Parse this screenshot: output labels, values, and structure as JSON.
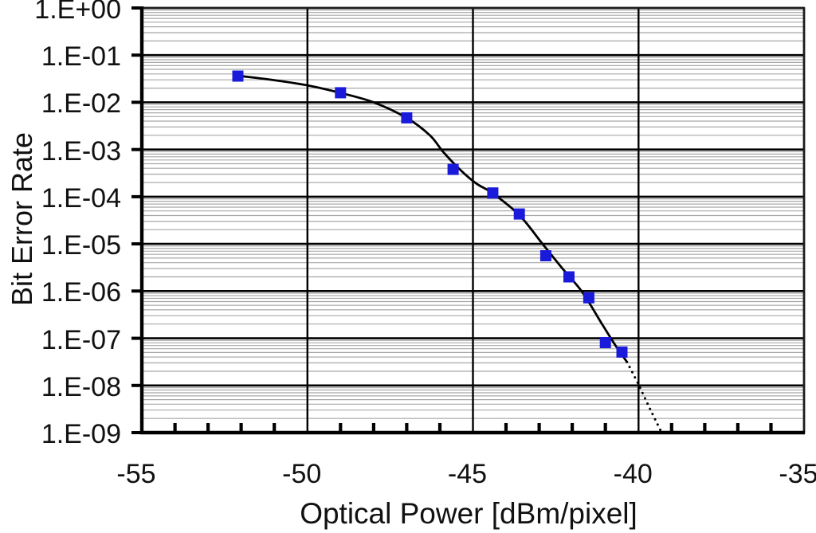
{
  "figure": {
    "background": "#ffffff"
  },
  "chart_data": {
    "type": "scatter",
    "title": "",
    "xlabel": "Optical Power [dBm/pixel]",
    "ylabel": "Bit Error Rate",
    "x_axis": {
      "min": -55,
      "max": -35,
      "tick_values": [
        -55,
        -50,
        -45,
        -40,
        -35
      ],
      "tick_labels": [
        "-55",
        "-50",
        "-45",
        "-40",
        "-35"
      ],
      "minor_tick_step": 1
    },
    "y_axis": {
      "scale": "log",
      "max_exp": 0,
      "min_exp": -9,
      "tick_labels": [
        "1.E+00",
        "1.E-01",
        "1.E-02",
        "1.E-03",
        "1.E-04",
        "1.E-05",
        "1.E-06",
        "1.E-07",
        "1.E-08",
        "1.E-09"
      ]
    },
    "grid": {
      "major_color": "#000000",
      "minor_color": "#a8a8a8",
      "minor_log_subdivisions": [
        2,
        3,
        4,
        5,
        6,
        7,
        8,
        9
      ]
    },
    "series": [
      {
        "name": "measured-ber",
        "marker": "square",
        "marker_color": "#1a1adb",
        "marker_size_px": 14,
        "points": [
          [
            -52.1,
            0.036
          ],
          [
            -49.0,
            0.016
          ],
          [
            -47.0,
            0.0047
          ],
          [
            -45.6,
            0.00038
          ],
          [
            -44.4,
            0.00012
          ],
          [
            -43.6,
            4.3e-05
          ],
          [
            -42.8,
            5.6e-06
          ],
          [
            -42.1,
            2e-06
          ],
          [
            -41.5,
            7.2e-07
          ],
          [
            -41.0,
            8.1e-08
          ],
          [
            -40.5,
            5.1e-08
          ]
        ]
      }
    ],
    "fit_curve": {
      "color": "#000000",
      "solid_x_logy": [
        [
          -52.05,
          -1.44
        ],
        [
          -51.0,
          -1.53
        ],
        [
          -50.0,
          -1.64
        ],
        [
          -49.0,
          -1.8
        ],
        [
          -48.0,
          -2.0
        ],
        [
          -47.0,
          -2.33
        ],
        [
          -46.3,
          -2.7
        ],
        [
          -45.9,
          -3.05
        ],
        [
          -45.4,
          -3.42
        ],
        [
          -44.9,
          -3.72
        ],
        [
          -44.4,
          -3.93
        ],
        [
          -43.6,
          -4.39
        ],
        [
          -42.9,
          -5.0
        ],
        [
          -42.3,
          -5.52
        ],
        [
          -41.7,
          -6.02
        ],
        [
          -41.1,
          -6.7
        ],
        [
          -40.7,
          -7.15
        ],
        [
          -40.35,
          -7.5
        ]
      ],
      "dotted_extrapolation_x_logy": [
        [
          -40.35,
          -7.5
        ],
        [
          -40.0,
          -7.98
        ],
        [
          -39.65,
          -8.5
        ],
        [
          -39.3,
          -9.0
        ]
      ]
    }
  }
}
